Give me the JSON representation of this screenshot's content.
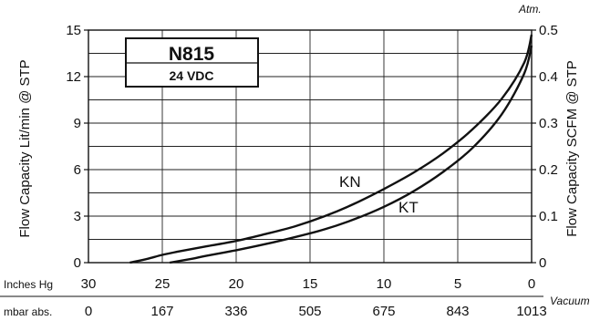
{
  "chart_data": {
    "type": "line",
    "title": "N815",
    "subtitle": "24 VDC",
    "ylabel_left": "Flow Capacity Lit/min @ STP",
    "ylabel_right": "Flow Capacity SCFM @ STP",
    "right_axis_unit": "Atm.",
    "x_axis_end_label": "Vacuum",
    "x_axis_inches_label": "Inches Hg",
    "x_axis_mbar_label": "mbar abs.",
    "x_ticks_inches_hg": [
      "30",
      "25",
      "20",
      "15",
      "10",
      "5",
      "0"
    ],
    "x_ticks_mbar_abs": [
      "0",
      "167",
      "336",
      "505",
      "675",
      "843",
      "1013"
    ],
    "xlim_inches_hg": [
      30,
      0
    ],
    "ylim_left": [
      0,
      15
    ],
    "y_ticks_left": [
      "0",
      "3",
      "6",
      "9",
      "12",
      "15"
    ],
    "ylim_right": [
      0,
      0.5
    ],
    "y_ticks_right": [
      "0",
      "0.1",
      "0.2",
      "0.3",
      "0.4",
      "0.5"
    ],
    "grid": true,
    "series": [
      {
        "name": "KN",
        "x_inches_hg": [
          27.2,
          26,
          25,
          24,
          22,
          20,
          18,
          16,
          14,
          12,
          10,
          8,
          6,
          4,
          2,
          0.5,
          0
        ],
        "y_lit_min": [
          0,
          0.25,
          0.5,
          0.7,
          1.05,
          1.4,
          1.85,
          2.35,
          3.0,
          3.8,
          4.75,
          5.8,
          7.05,
          8.6,
          10.6,
          12.9,
          14.7
        ]
      },
      {
        "name": "KT",
        "x_inches_hg": [
          24.5,
          23,
          22,
          20,
          18,
          16,
          14,
          12,
          10,
          8,
          6,
          4,
          2,
          0.5,
          0
        ],
        "y_lit_min": [
          0,
          0.25,
          0.45,
          0.8,
          1.2,
          1.65,
          2.15,
          2.8,
          3.6,
          4.6,
          5.85,
          7.4,
          9.6,
          12.2,
          14.0
        ]
      }
    ]
  }
}
